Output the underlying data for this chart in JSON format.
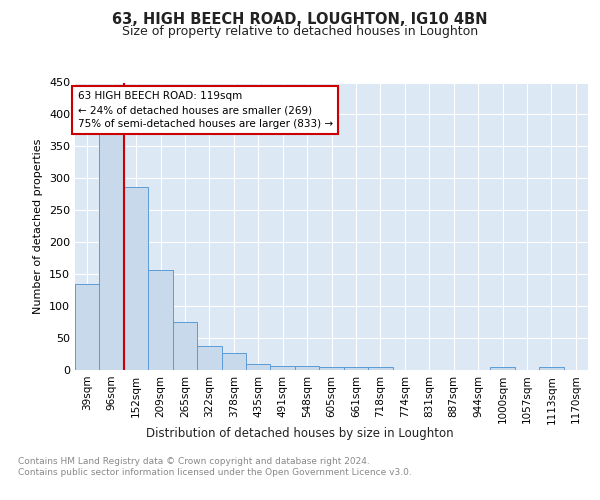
{
  "title": "63, HIGH BEECH ROAD, LOUGHTON, IG10 4BN",
  "subtitle": "Size of property relative to detached houses in Loughton",
  "xlabel": "Distribution of detached houses by size in Loughton",
  "ylabel": "Number of detached properties",
  "bar_labels": [
    "39sqm",
    "96sqm",
    "152sqm",
    "209sqm",
    "265sqm",
    "322sqm",
    "378sqm",
    "435sqm",
    "491sqm",
    "548sqm",
    "605sqm",
    "661sqm",
    "718sqm",
    "774sqm",
    "831sqm",
    "887sqm",
    "944sqm",
    "1000sqm",
    "1057sqm",
    "1113sqm",
    "1170sqm"
  ],
  "bar_values": [
    135,
    370,
    287,
    157,
    75,
    38,
    27,
    10,
    6,
    6,
    4,
    5,
    5,
    0,
    0,
    0,
    0,
    4,
    0,
    4,
    0
  ],
  "bar_color": "#c9d9ec",
  "bar_edge_color": "#5b9bd5",
  "vline_x": 1.5,
  "vline_color": "#cc0000",
  "annotation_text": "63 HIGH BEECH ROAD: 119sqm\n← 24% of detached houses are smaller (269)\n75% of semi-detached houses are larger (833) →",
  "annotation_box_color": "#ffffff",
  "annotation_box_edge": "#cc0000",
  "ylim": [
    0,
    450
  ],
  "yticks": [
    0,
    50,
    100,
    150,
    200,
    250,
    300,
    350,
    400,
    450
  ],
  "footer": "Contains HM Land Registry data © Crown copyright and database right 2024.\nContains public sector information licensed under the Open Government Licence v3.0.",
  "plot_background": "#dce9f5",
  "fig_background": "#ffffff"
}
